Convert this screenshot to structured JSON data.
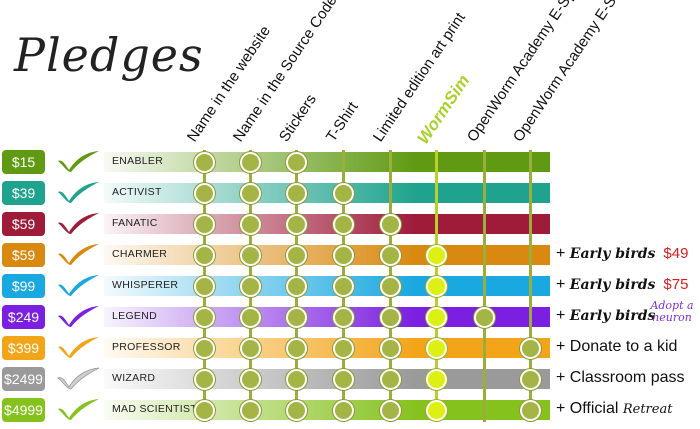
{
  "title": "Pledges",
  "columns": [
    {
      "label": "Name in the website"
    },
    {
      "label": "Name in the Source Code"
    },
    {
      "label": "Stickers"
    },
    {
      "label": "T-Shirt"
    },
    {
      "label": "Limited edition art print"
    },
    {
      "label": "WormSim"
    },
    {
      "label": "OpenWorm Academy E-Spectator"
    },
    {
      "label": "OpenWorm Academy E-Student"
    }
  ],
  "tiers": [
    {
      "price": "$15",
      "name": "ENABLER",
      "color": "#5f9a12",
      "benefits": [
        true,
        true,
        true,
        false,
        false,
        false,
        false,
        false
      ]
    },
    {
      "price": "$39",
      "name": "ACTIVIST",
      "color": "#1fa38e",
      "benefits": [
        true,
        true,
        true,
        true,
        false,
        false,
        false,
        false
      ]
    },
    {
      "price": "$59",
      "name": "FANATIC",
      "color": "#9e1b3a",
      "benefits": [
        true,
        true,
        true,
        true,
        true,
        false,
        false,
        false
      ]
    },
    {
      "price": "$59",
      "name": "CHARMER",
      "color": "#d9890f",
      "benefits": [
        true,
        true,
        true,
        true,
        true,
        true,
        false,
        false
      ]
    },
    {
      "price": "$99",
      "name": "WHISPERER",
      "color": "#19a8e0",
      "benefits": [
        true,
        true,
        true,
        true,
        true,
        true,
        false,
        false
      ]
    },
    {
      "price": "$249",
      "name": "LEGEND",
      "color": "#7b1fe0",
      "benefits": [
        true,
        true,
        true,
        true,
        true,
        true,
        true,
        false
      ]
    },
    {
      "price": "$399",
      "name": "PROFESSOR",
      "color": "#f3a51a",
      "benefits": [
        true,
        true,
        true,
        true,
        true,
        true,
        false,
        true
      ]
    },
    {
      "price": "$2499",
      "name": "WIZARD",
      "color": "#9a9a9a",
      "benefits": [
        true,
        true,
        true,
        true,
        true,
        true,
        false,
        true
      ]
    },
    {
      "price": "$4999",
      "name": "MAD SCIENTIST",
      "color": "#86c21e",
      "benefits": [
        true,
        true,
        true,
        true,
        true,
        true,
        false,
        true
      ]
    }
  ],
  "extras": [
    {
      "row": 3,
      "text": "+ ",
      "early": "Early birds",
      "price": "$49",
      "color": "#111111"
    },
    {
      "row": 4,
      "text": "+ ",
      "early": "Early birds",
      "price": "$75",
      "color": "#111111"
    },
    {
      "row": 5,
      "text": "+ ",
      "early": "Early birds",
      "price": "",
      "color": "#111111"
    },
    {
      "row": 6,
      "text": "+ Donate to a kid",
      "early": "",
      "price": "",
      "color": "#111111"
    },
    {
      "row": 7,
      "text": "+ Classroom pass",
      "early": "",
      "price": "",
      "color": "#111111"
    },
    {
      "row": 8,
      "text": "+ Official ",
      "early": "Retreat",
      "price": "",
      "color": "#111111"
    }
  ],
  "neuron_note": "Adopt a neuron",
  "colors": {
    "dot": "#a5b545",
    "dot_special": "#dcf013",
    "column_line": "#9aae3c",
    "wormsim": "#a8d12a"
  },
  "icons": {
    "check": "check-icon"
  }
}
